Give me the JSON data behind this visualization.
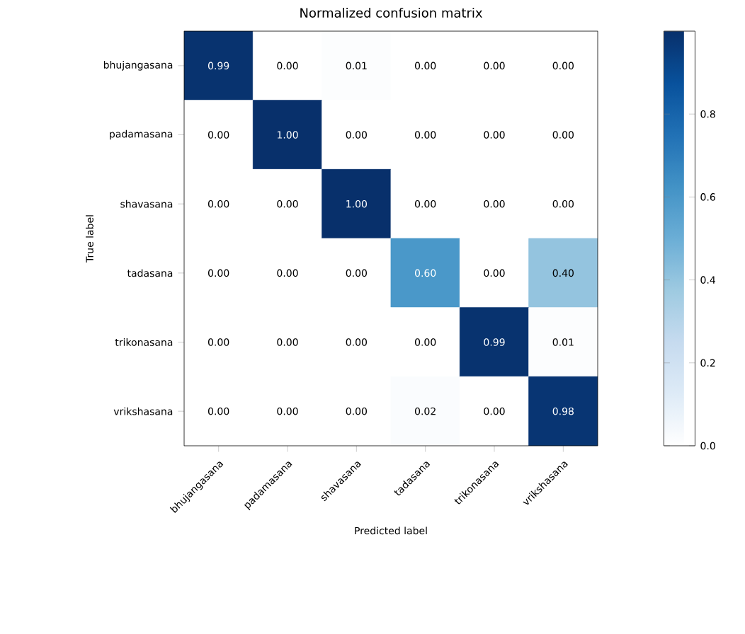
{
  "chart_data": {
    "type": "heatmap",
    "title": "Normalized confusion matrix",
    "xlabel": "Predicted label",
    "ylabel": "True label",
    "categories": [
      "bhujangasana",
      "padamasana",
      "shavasana",
      "tadasana",
      "trikonasana",
      "vrikshasana"
    ],
    "y_categories": [
      "bhujangasana",
      "padamasana",
      "shavasana",
      "tadasana",
      "trikonasana",
      "vrikshasana"
    ],
    "cells": [
      [
        0.99,
        0.0,
        0.01,
        0.0,
        0.0,
        0.0
      ],
      [
        0.0,
        1.0,
        0.0,
        0.0,
        0.0,
        0.0
      ],
      [
        0.0,
        0.0,
        1.0,
        0.0,
        0.0,
        0.0
      ],
      [
        0.0,
        0.0,
        0.0,
        0.6,
        0.0,
        0.4
      ],
      [
        0.0,
        0.0,
        0.0,
        0.0,
        0.99,
        0.01
      ],
      [
        0.0,
        0.0,
        0.0,
        0.02,
        0.0,
        0.98
      ]
    ],
    "cell_labels": [
      [
        "0.99",
        "0.00",
        "0.01",
        "0.00",
        "0.00",
        "0.00"
      ],
      [
        "0.00",
        "1.00",
        "0.00",
        "0.00",
        "0.00",
        "0.00"
      ],
      [
        "0.00",
        "0.00",
        "1.00",
        "0.00",
        "0.00",
        "0.00"
      ],
      [
        "0.00",
        "0.00",
        "0.00",
        "0.60",
        "0.00",
        "0.40"
      ],
      [
        "0.00",
        "0.00",
        "0.00",
        "0.00",
        "0.99",
        "0.01"
      ],
      [
        "0.00",
        "0.00",
        "0.00",
        "0.02",
        "0.00",
        "0.98"
      ]
    ],
    "clim": [
      0,
      1
    ],
    "cticks": [
      {
        "value": 0,
        "label": "0.0"
      },
      {
        "value": 0.2,
        "label": "0.2"
      },
      {
        "value": 0.4,
        "label": "0.4"
      },
      {
        "value": 0.6,
        "label": "0.6"
      },
      {
        "value": 0.8,
        "label": "0.8"
      }
    ]
  }
}
